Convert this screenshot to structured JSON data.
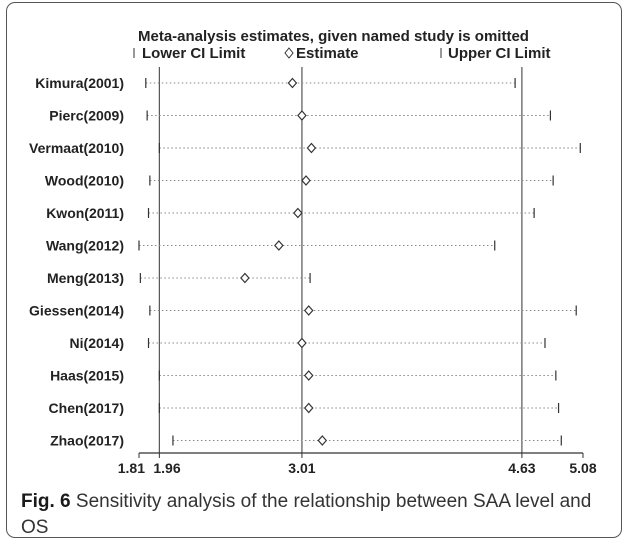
{
  "chart_data": {
    "type": "scatter",
    "title": "Meta-analysis estimates, given named study is omitted",
    "legend": {
      "lower": "Lower CI Limit",
      "estimate": "Estimate",
      "upper": "Upper CI Limit",
      "placement": "top"
    },
    "studies": [
      "Kimura(2001)",
      "Pierc(2009)",
      "Vermaat(2010)",
      "Wood(2010)",
      "Kwon(2011)",
      "Wang(2012)",
      "Meng(2013)",
      "Giessen(2014)",
      "Ni(2014)",
      "Haas(2015)",
      "Chen(2017)",
      "Zhao(2017)"
    ],
    "lower": [
      1.86,
      1.87,
      1.96,
      1.89,
      1.88,
      1.81,
      1.82,
      1.89,
      1.88,
      1.96,
      1.96,
      2.06
    ],
    "estimate": [
      2.94,
      3.01,
      3.08,
      3.04,
      2.98,
      2.84,
      2.59,
      3.06,
      3.01,
      3.06,
      3.06,
      3.16
    ],
    "upper": [
      4.58,
      4.84,
      5.06,
      4.86,
      4.72,
      4.43,
      3.07,
      5.03,
      4.8,
      4.88,
      4.9,
      4.92
    ],
    "reference_lines": [
      1.96,
      3.01,
      4.63
    ],
    "ticks": [
      "1.81",
      "1.96",
      "3.01",
      "4.63",
      "5.08"
    ],
    "tick_values": [
      1.81,
      1.96,
      3.01,
      4.63,
      5.08
    ],
    "xlim": [
      1.81,
      5.08
    ],
    "grid": false
  },
  "caption": {
    "label": "Fig. 6",
    "text": "Sensitivity analysis of the relationship between SAA level and OS"
  }
}
